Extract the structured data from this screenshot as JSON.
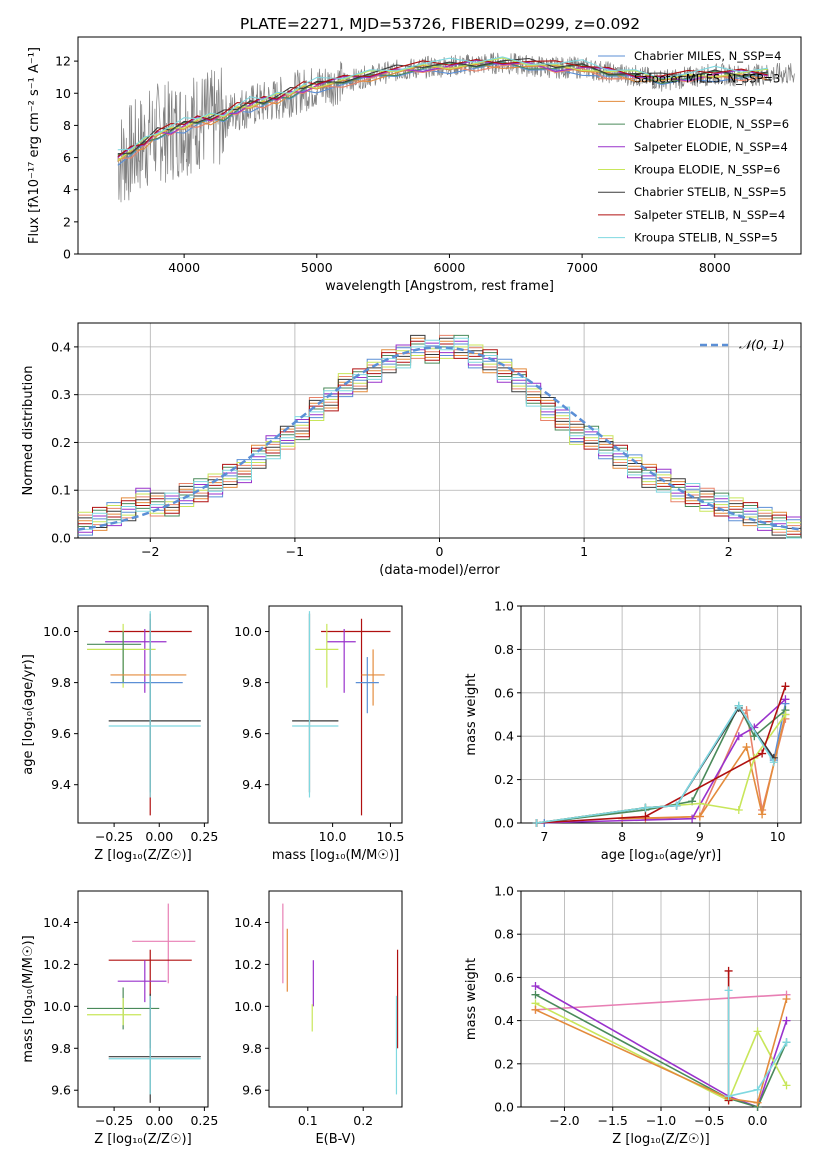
{
  "figure": {
    "title": "PLATE=2271, MJD=53726, FIBERID=0299, z=0.092",
    "colors": {
      "chabrier_miles": "#5b8fd6",
      "salpeter_miles": "#e8836a",
      "kroupa_miles": "#e38b3c",
      "chabrier_elodie": "#4a8a5a",
      "salpeter_elodie": "#9932cc",
      "kroupa_elodie": "#c8e65a",
      "chabrier_stelib": "#3a3a3a",
      "salpeter_stelib": "#b01010",
      "kroupa_stelib": "#7fd8e0",
      "data_spectrum": "#808080",
      "gaussian": "#5b8fd6",
      "pink_extra": "#e87fb4"
    }
  },
  "chart_data": [
    {
      "id": "spectrum",
      "type": "line",
      "xlabel": "wavelength [Angstrom, rest frame]",
      "ylabel": "Flux [fλ10⁻¹⁷ erg cm⁻² s⁻¹ A⁻¹]",
      "xlim": [
        3200,
        8650
      ],
      "ylim": [
        0,
        13.5
      ],
      "xticks": [
        4000,
        5000,
        6000,
        7000,
        8000
      ],
      "yticks": [
        0,
        2,
        4,
        6,
        8,
        10,
        12
      ],
      "grid": false,
      "legend_position": "right",
      "data_spectrum": {
        "x": [
          3500,
          3600,
          3700,
          3800,
          3900,
          4000,
          4100,
          4200,
          4300,
          4400,
          4500,
          4600,
          4700,
          4800,
          4900,
          5000,
          5200,
          5400,
          5600,
          5800,
          6000,
          6200,
          6400,
          6600,
          6800,
          7000,
          7200,
          7400,
          7600,
          7800,
          8000,
          8200,
          8400,
          8600
        ],
        "y": [
          5.8,
          6.3,
          7.0,
          7.6,
          7.6,
          8.0,
          8.3,
          8.3,
          8.5,
          9.0,
          9.2,
          9.4,
          9.6,
          9.9,
          10.2,
          10.4,
          10.7,
          11.1,
          11.4,
          11.6,
          11.7,
          11.8,
          11.9,
          11.7,
          11.6,
          11.6,
          11.3,
          11.1,
          10.8,
          11.0,
          11.2,
          11.1,
          11.2,
          11.2
        ]
      },
      "series": [
        {
          "name": "Chabrier MILES, N_SSP=4",
          "color_key": "chabrier_miles"
        },
        {
          "name": "Salpeter MILES, N_SSP=3",
          "color_key": "salpeter_miles"
        },
        {
          "name": "Kroupa MILES, N_SSP=4",
          "color_key": "kroupa_miles"
        },
        {
          "name": "Chabrier ELODIE, N_SSP=6",
          "color_key": "chabrier_elodie"
        },
        {
          "name": "Salpeter ELODIE, N_SSP=4",
          "color_key": "salpeter_elodie"
        },
        {
          "name": "Kroupa ELODIE, N_SSP=6",
          "color_key": "kroupa_elodie"
        },
        {
          "name": "Chabrier STELIB, N_SSP=5",
          "color_key": "chabrier_stelib"
        },
        {
          "name": "Salpeter STELIB, N_SSP=4",
          "color_key": "salpeter_stelib"
        },
        {
          "name": "Kroupa STELIB, N_SSP=5",
          "color_key": "kroupa_stelib"
        }
      ],
      "model_x": [
        3500,
        3600,
        3700,
        3800,
        3900,
        4000,
        4100,
        4200,
        4300,
        4400,
        4500,
        4600,
        4700,
        4800,
        4900,
        5000,
        5200,
        5400,
        5600,
        5800,
        6000,
        6200,
        6400,
        6600,
        6800,
        7000,
        7200,
        7400,
        7600,
        7800,
        8000,
        8200,
        8400
      ],
      "model_y": [
        6.0,
        6.4,
        6.9,
        7.5,
        7.7,
        8.0,
        8.3,
        8.4,
        8.6,
        9.0,
        9.3,
        9.5,
        9.7,
        10.0,
        10.3,
        10.5,
        10.8,
        11.1,
        11.4,
        11.6,
        11.7,
        11.8,
        11.9,
        11.8,
        11.6,
        11.6,
        11.3,
        11.1,
        10.9,
        11.0,
        11.2,
        11.2,
        11.2
      ]
    },
    {
      "id": "residuals",
      "type": "line",
      "xlabel": "(data-model)/error",
      "ylabel": "Normed distribution",
      "xlim": [
        -2.5,
        2.5
      ],
      "ylim": [
        0,
        0.45
      ],
      "xticks": [
        -2,
        -1,
        0,
        1,
        2
      ],
      "yticks": [
        0.0,
        0.1,
        0.2,
        0.3,
        0.4
      ],
      "grid": true,
      "legend": "𝒩(0, 1)",
      "legend_position": "top-right",
      "hist_bins": [
        -2.5,
        -2.4,
        -2.3,
        -2.2,
        -2.1,
        -2.0,
        -1.9,
        -1.8,
        -1.7,
        -1.6,
        -1.5,
        -1.4,
        -1.3,
        -1.2,
        -1.1,
        -1.0,
        -0.9,
        -0.8,
        -0.7,
        -0.6,
        -0.5,
        -0.4,
        -0.3,
        -0.2,
        -0.1,
        0.0,
        0.1,
        0.2,
        0.3,
        0.4,
        0.5,
        0.6,
        0.7,
        0.8,
        0.9,
        1.0,
        1.1,
        1.2,
        1.3,
        1.4,
        1.5,
        1.6,
        1.7,
        1.8,
        1.9,
        2.0,
        2.1,
        2.2,
        2.3,
        2.4,
        2.5
      ],
      "hist_values": [
        0.03,
        0.04,
        0.05,
        0.06,
        0.08,
        0.07,
        0.07,
        0.09,
        0.1,
        0.11,
        0.13,
        0.14,
        0.17,
        0.19,
        0.21,
        0.23,
        0.27,
        0.29,
        0.32,
        0.33,
        0.35,
        0.37,
        0.38,
        0.4,
        0.39,
        0.4,
        0.4,
        0.38,
        0.37,
        0.35,
        0.33,
        0.3,
        0.27,
        0.25,
        0.22,
        0.21,
        0.19,
        0.17,
        0.15,
        0.13,
        0.12,
        0.1,
        0.09,
        0.08,
        0.07,
        0.06,
        0.05,
        0.04,
        0.03,
        0.02
      ]
    },
    {
      "id": "age_vs_Z",
      "type": "scatter",
      "xlabel": "Z [log₁₀(Z/Z☉)]",
      "ylabel": "age  [log₁₀(age/yr)]",
      "xlim": [
        -0.45,
        0.27
      ],
      "ylim": [
        9.25,
        10.1
      ],
      "xticks": [
        -0.25,
        0.0,
        0.25
      ],
      "xticklabels": [
        "−0.25",
        "0.00",
        "0.25"
      ],
      "yticks": [
        9.4,
        9.6,
        9.8,
        10.0
      ],
      "points": [
        {
          "color_key": "salpeter_stelib",
          "x": -0.05,
          "xerr": [
            0.23,
            0.23
          ],
          "y": 10.0,
          "yerr": [
            0.72,
            0.05
          ]
        },
        {
          "color_key": "salpeter_elodie",
          "x": -0.08,
          "xerr": [
            0.22,
            0.12
          ],
          "y": 9.96,
          "yerr": [
            0.2,
            0.05
          ]
        },
        {
          "color_key": "kroupa_elodie",
          "x": -0.2,
          "xerr": [
            0.2,
            0.18
          ],
          "y": 9.93,
          "yerr": [
            0.15,
            0.1
          ]
        },
        {
          "color_key": "chabrier_elodie",
          "x": -0.2,
          "xerr": [
            0.2,
            0.1
          ],
          "y": 9.95,
          "yerr": [
            0.15,
            0.05
          ]
        },
        {
          "color_key": "kroupa_miles",
          "x": -0.05,
          "xerr": [
            0.22,
            0.2
          ],
          "y": 9.83,
          "yerr": [
            0.12,
            0.1
          ]
        },
        {
          "color_key": "chabrier_miles",
          "x": -0.05,
          "xerr": [
            0.22,
            0.18
          ],
          "y": 9.8,
          "yerr": [
            0.12,
            0.1
          ]
        },
        {
          "color_key": "chabrier_stelib",
          "x": -0.05,
          "xerr": [
            0.23,
            0.28
          ],
          "y": 9.65,
          "yerr": [
            0.28,
            0.42
          ]
        },
        {
          "color_key": "kroupa_stelib",
          "x": -0.05,
          "xerr": [
            0.23,
            0.28
          ],
          "y": 9.63,
          "yerr": [
            0.28,
            0.45
          ]
        }
      ]
    },
    {
      "id": "age_vs_mass",
      "type": "scatter",
      "xlabel": "mass [log₁₀(M/M☉)]",
      "ylabel": "",
      "xlim": [
        9.45,
        10.6
      ],
      "ylim": [
        9.25,
        10.1
      ],
      "xticks": [
        10.0,
        10.5
      ],
      "xticklabels": [
        "10.0",
        "10.5"
      ],
      "yticks": [
        9.4,
        9.6,
        9.8,
        10.0
      ],
      "points": [
        {
          "color_key": "salpeter_stelib",
          "x": 10.25,
          "xerr": [
            0.35,
            0.25
          ],
          "y": 10.0,
          "yerr": [
            0.72,
            0.05
          ]
        },
        {
          "color_key": "salpeter_elodie",
          "x": 10.1,
          "xerr": [
            0.15,
            0.1
          ],
          "y": 9.96,
          "yerr": [
            0.2,
            0.05
          ]
        },
        {
          "color_key": "kroupa_elodie",
          "x": 9.95,
          "xerr": [
            0.1,
            0.1
          ],
          "y": 9.93,
          "yerr": [
            0.15,
            0.1
          ]
        },
        {
          "color_key": "kroupa_miles",
          "x": 10.35,
          "xerr": [
            0.1,
            0.1
          ],
          "y": 9.83,
          "yerr": [
            0.12,
            0.1
          ]
        },
        {
          "color_key": "chabrier_miles",
          "x": 10.3,
          "xerr": [
            0.1,
            0.1
          ],
          "y": 9.8,
          "yerr": [
            0.12,
            0.1
          ]
        },
        {
          "color_key": "chabrier_stelib",
          "x": 9.8,
          "xerr": [
            0.15,
            0.25
          ],
          "y": 9.65,
          "yerr": [
            0.28,
            0.42
          ]
        },
        {
          "color_key": "kroupa_stelib",
          "x": 9.8,
          "xerr": [
            0.15,
            0.25
          ],
          "y": 9.63,
          "yerr": [
            0.28,
            0.45
          ]
        }
      ]
    },
    {
      "id": "weight_vs_age",
      "type": "line",
      "xlabel": "age  [log₁₀(age/yr)]",
      "ylabel": "mass weight",
      "xlim": [
        6.7,
        10.3
      ],
      "ylim": [
        0.0,
        1.0
      ],
      "xticks": [
        7,
        8,
        9,
        10
      ],
      "yticks": [
        0.0,
        0.2,
        0.4,
        0.6,
        0.8,
        1.0
      ],
      "grid": true,
      "series": [
        {
          "color_key": "chabrier_miles",
          "x": [
            7.0,
            8.3,
            8.7,
            9.5,
            9.95,
            10.1
          ],
          "y": [
            0.0,
            0.07,
            0.08,
            0.54,
            0.29,
            0.55
          ]
        },
        {
          "color_key": "salpeter_miles",
          "x": [
            8.3,
            9.0,
            9.6,
            9.8,
            10.1
          ],
          "y": [
            0.02,
            0.03,
            0.52,
            0.06,
            0.48
          ]
        },
        {
          "color_key": "kroupa_miles",
          "x": [
            8.0,
            9.0,
            9.6,
            9.8,
            10.1
          ],
          "y": [
            0.02,
            0.03,
            0.35,
            0.04,
            0.5
          ]
        },
        {
          "color_key": "chabrier_elodie",
          "x": [
            6.9,
            8.3,
            8.9,
            9.5,
            9.7,
            10.1
          ],
          "y": [
            0.0,
            0.06,
            0.1,
            0.54,
            0.4,
            0.52
          ]
        },
        {
          "color_key": "salpeter_elodie",
          "x": [
            6.9,
            8.9,
            9.5,
            9.7,
            10.1
          ],
          "y": [
            0.0,
            0.02,
            0.4,
            0.44,
            0.57
          ]
        },
        {
          "color_key": "kroupa_elodie",
          "x": [
            6.9,
            8.3,
            9.0,
            9.5,
            9.7,
            10.1
          ],
          "y": [
            0.0,
            0.07,
            0.09,
            0.06,
            0.3,
            0.5
          ]
        },
        {
          "color_key": "chabrier_stelib",
          "x": [
            6.9,
            8.3,
            8.7,
            9.5,
            9.95
          ],
          "y": [
            0.0,
            0.07,
            0.08,
            0.53,
            0.3
          ]
        },
        {
          "color_key": "salpeter_stelib",
          "x": [
            6.9,
            8.3,
            9.8,
            10.1
          ],
          "y": [
            0.0,
            0.03,
            0.32,
            0.63
          ]
        },
        {
          "color_key": "kroupa_stelib",
          "x": [
            6.9,
            8.3,
            8.7,
            9.5,
            9.95
          ],
          "y": [
            0.0,
            0.07,
            0.08,
            0.54,
            0.28
          ]
        }
      ]
    },
    {
      "id": "mass_vs_Z",
      "type": "scatter",
      "xlabel": "Z [log₁₀(Z/Z☉)]",
      "ylabel": "mass [log₁₀(M/M☉)]",
      "xlim": [
        -0.45,
        0.27
      ],
      "ylim": [
        9.52,
        10.55
      ],
      "xticks": [
        -0.25,
        0.0,
        0.25
      ],
      "xticklabels": [
        "−0.25",
        "0.00",
        "0.25"
      ],
      "yticks": [
        9.6,
        9.8,
        10.0,
        10.2,
        10.4
      ],
      "points": [
        {
          "color_key": "pink_extra",
          "x": 0.05,
          "xerr": [
            0.2,
            0.15
          ],
          "y": 10.31,
          "yerr": [
            0.2,
            0.18
          ]
        },
        {
          "color_key": "salpeter_stelib",
          "x": -0.05,
          "xerr": [
            0.23,
            0.23
          ],
          "y": 10.22,
          "yerr": [
            0.42,
            0.05
          ]
        },
        {
          "color_key": "salpeter_elodie",
          "x": -0.08,
          "xerr": [
            0.15,
            0.12
          ],
          "y": 10.12,
          "yerr": [
            0.1,
            0.1
          ]
        },
        {
          "color_key": "chabrier_elodie",
          "x": -0.2,
          "xerr": [
            0.2,
            0.2
          ],
          "y": 9.99,
          "yerr": [
            0.1,
            0.1
          ]
        },
        {
          "color_key": "kroupa_elodie",
          "x": -0.2,
          "xerr": [
            0.2,
            0.1
          ],
          "y": 9.96,
          "yerr": [
            0.05,
            0.08
          ]
        },
        {
          "color_key": "chabrier_stelib",
          "x": -0.05,
          "xerr": [
            0.23,
            0.28
          ],
          "y": 9.76,
          "yerr": [
            0.22,
            0.3
          ]
        },
        {
          "color_key": "kroupa_stelib",
          "x": -0.05,
          "xerr": [
            0.23,
            0.28
          ],
          "y": 9.75,
          "yerr": [
            0.17,
            0.3
          ]
        }
      ]
    },
    {
      "id": "mass_vs_ebv",
      "type": "scatter",
      "xlabel": "E(B-V)",
      "ylabel": "",
      "xlim": [
        0.03,
        0.27
      ],
      "ylim": [
        9.52,
        10.55
      ],
      "xticks": [
        0.1,
        0.2
      ],
      "xticklabels": [
        "0.1",
        "0.2"
      ],
      "yticks": [
        9.6,
        9.8,
        10.0,
        10.2,
        10.4
      ],
      "points": [
        {
          "color_key": "pink_extra",
          "x": 0.055,
          "y": 10.31,
          "yerr": [
            0.2,
            0.18
          ]
        },
        {
          "color_key": "kroupa_miles",
          "x": 0.063,
          "y": 10.22,
          "yerr": [
            0.15,
            0.15
          ]
        },
        {
          "color_key": "salpeter_elodie",
          "x": 0.11,
          "y": 10.12,
          "yerr": [
            0.12,
            0.1
          ]
        },
        {
          "color_key": "kroupa_elodie",
          "x": 0.108,
          "y": 9.96,
          "yerr": [
            0.08,
            0.05
          ]
        },
        {
          "color_key": "salpeter_stelib",
          "x": 0.262,
          "y": 10.22,
          "yerr": [
            0.42,
            0.05
          ]
        },
        {
          "color_key": "kroupa_stelib",
          "x": 0.26,
          "y": 9.75,
          "yerr": [
            0.17,
            0.3
          ]
        }
      ]
    },
    {
      "id": "weight_vs_Z",
      "type": "line",
      "xlabel": "Z [log₁₀(Z/Z☉)]",
      "ylabel": "mass weight",
      "xlim": [
        -2.45,
        0.45
      ],
      "ylim": [
        0.0,
        1.0
      ],
      "xticks": [
        -2.0,
        -1.5,
        -1.0,
        -0.5,
        0.0
      ],
      "xticklabels": [
        "−2.0",
        "−1.5",
        "−1.0",
        "−0.5",
        "0.0"
      ],
      "yticks": [
        0.0,
        0.2,
        0.4,
        0.6,
        0.8,
        1.0
      ],
      "grid": true,
      "series": [
        {
          "color_key": "pink_extra",
          "x": [
            -2.3,
            0.3
          ],
          "y": [
            0.45,
            0.52
          ]
        },
        {
          "color_key": "salpeter_elodie",
          "x": [
            -2.3,
            -0.3,
            0.0,
            0.3
          ],
          "y": [
            0.56,
            0.05,
            0.0,
            0.4
          ]
        },
        {
          "color_key": "chabrier_elodie",
          "x": [
            -2.3,
            -0.3,
            0.0,
            0.3
          ],
          "y": [
            0.52,
            0.04,
            0.0,
            0.3
          ]
        },
        {
          "color_key": "kroupa_elodie",
          "x": [
            -2.3,
            -0.3,
            0.0,
            0.3
          ],
          "y": [
            0.48,
            0.03,
            0.35,
            0.1
          ]
        },
        {
          "color_key": "kroupa_miles",
          "x": [
            -2.3,
            -0.3,
            0.0,
            0.3
          ],
          "y": [
            0.45,
            0.04,
            0.02,
            0.5
          ]
        },
        {
          "color_key": "salpeter_stelib",
          "x": [
            -0.3,
            -0.3
          ],
          "y": [
            0.63,
            0.03
          ]
        },
        {
          "color_key": "kroupa_stelib",
          "x": [
            -0.3,
            -0.3,
            0.0,
            0.3
          ],
          "y": [
            0.54,
            0.05,
            0.08,
            0.3
          ]
        }
      ]
    }
  ]
}
